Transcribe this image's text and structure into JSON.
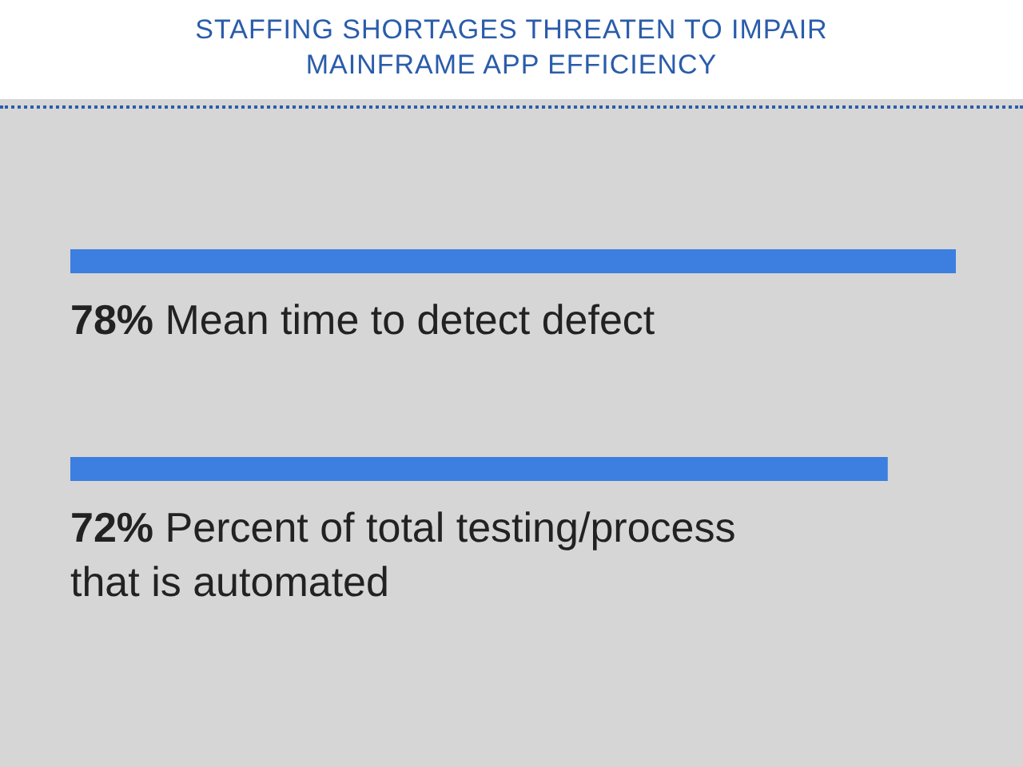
{
  "chart_data": {
    "type": "bar",
    "orientation": "horizontal",
    "title": "STAFFING SHORTAGES THREATEN TO IMPAIR MAINFRAME APP EFFICIENCY",
    "categories": [
      "Mean time to detect defect",
      "Percent of total testing/process that is automated"
    ],
    "values": [
      78,
      72
    ],
    "value_labels": [
      "78%",
      "72%"
    ],
    "color": "#3c7fe0"
  }
}
